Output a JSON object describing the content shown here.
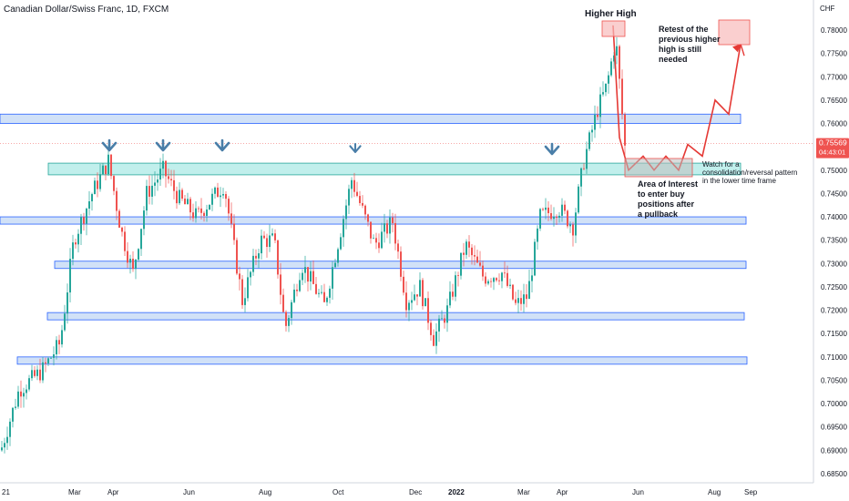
{
  "header": {
    "symbol_title": "Canadian Dollar/Swiss Franc, 1D, FXCM"
  },
  "price_axis": {
    "currency": "CHF",
    "ticks": [
      "0.78000",
      "0.77500",
      "0.77000",
      "0.76500",
      "0.76000",
      "0.75500",
      "0.75000",
      "0.74500",
      "0.74000",
      "0.73500",
      "0.73000",
      "0.72500",
      "0.72000",
      "0.71500",
      "0.71000",
      "0.70500",
      "0.70000",
      "0.69500",
      "0.69000",
      "0.68500"
    ],
    "tick_values": [
      0.78,
      0.775,
      0.77,
      0.765,
      0.76,
      0.755,
      0.75,
      0.745,
      0.74,
      0.735,
      0.73,
      0.725,
      0.72,
      0.715,
      0.71,
      0.705,
      0.7,
      0.695,
      0.69,
      0.685
    ],
    "last_price": "0.75569",
    "last_price_value": 0.75569,
    "countdown": "04:43:01",
    "colors": {
      "label_bg": "#ef5350",
      "label_text": "#ffffff"
    }
  },
  "time_axis": {
    "labels": [
      "21",
      "Mar",
      "Apr",
      "Jun",
      "Aug",
      "Oct",
      "Dec",
      "2022",
      "Mar",
      "Apr",
      "Jun",
      "Aug",
      "Sep"
    ],
    "bold_label": "2022"
  },
  "annotations": {
    "higher_high": "Higher High",
    "retest": [
      "Retest of the",
      "previous higher",
      "high is still",
      "needed"
    ],
    "watch": [
      "Watch for a",
      "consolidation/reversal pattern",
      "in the lower time frame"
    ],
    "area_of_interest": [
      "Area of Interest",
      "to enter buy",
      "positions after",
      "a pullback"
    ]
  },
  "chart_data": {
    "type": "candlestick",
    "title": "Canadian Dollar/Swiss Franc, 1D, FXCM",
    "ylabel": "CHF",
    "ylim": [
      0.6825,
      0.7885
    ],
    "horizontal_zones": [
      {
        "kind": "resistance",
        "from": 0.76,
        "to": 0.762
      },
      {
        "kind": "area_of_interest",
        "from": 0.749,
        "to": 0.7515
      },
      {
        "kind": "support",
        "from": 0.7386,
        "to": 0.74
      },
      {
        "kind": "support",
        "from": 0.729,
        "to": 0.7305
      },
      {
        "kind": "support",
        "from": 0.718,
        "to": 0.7195
      },
      {
        "kind": "support",
        "from": 0.7085,
        "to": 0.71
      }
    ],
    "projection_path": [
      0.757,
      0.75,
      0.753,
      0.75,
      0.753,
      0.75,
      0.7555,
      0.753,
      0.765,
      0.762,
      0.777
    ],
    "colors": {
      "up": "#26a69a",
      "down": "#ef5350",
      "zone_blue": "#b3cdf2",
      "zone_blue_border": "#2962ff",
      "zone_teal": "#a6e8e4",
      "arrow_blue": "#4a7ea8",
      "projection": "#e53935"
    }
  }
}
